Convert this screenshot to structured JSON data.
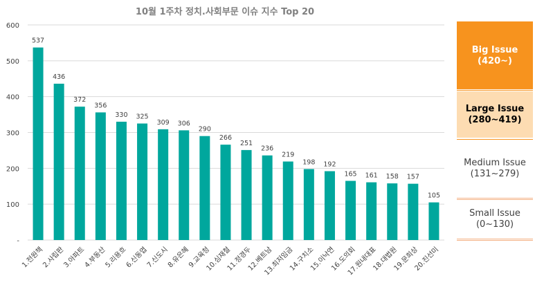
{
  "chart_data": {
    "type": "bar",
    "title": "10월 1주차 정치.사회부문 이슈 지수 Top 20",
    "xlabel": "",
    "ylabel": "",
    "ylim": [
      0,
      600
    ],
    "yticks": [
      "-",
      "100",
      "200",
      "300",
      "400",
      "500",
      "600"
    ],
    "categories": [
      "1.전원책",
      "2.사립판",
      "3.아파트",
      "4.부동산",
      "5.리용흐",
      "6.신동엽",
      "7.신도시",
      "8.유은혜",
      "9.교육청",
      "10.심재철",
      "11.정경두",
      "12.베트남",
      "13.최저임금",
      "14.구치소",
      "15.이낙연",
      "16.도의회",
      "17.원내대표",
      "18.대법원",
      "19.문희상",
      "20.진선미"
    ],
    "values": [
      537,
      436,
      372,
      356,
      330,
      325,
      309,
      306,
      290,
      266,
      251,
      236,
      219,
      198,
      192,
      165,
      161,
      158,
      157,
      105
    ],
    "bar_color": "#00A79D",
    "grid": true,
    "legend_position": "right"
  },
  "legend": {
    "big": {
      "name": "Big Issue",
      "range": "(420~)",
      "color": "#F7931E"
    },
    "large": {
      "name": "Large Issue",
      "range": "(280~419)",
      "color": "#FDDCB2"
    },
    "medium": {
      "name": "Medium Issue",
      "range": "(131~279)"
    },
    "small": {
      "name": "Small Issue",
      "range": "(0~130)"
    }
  }
}
